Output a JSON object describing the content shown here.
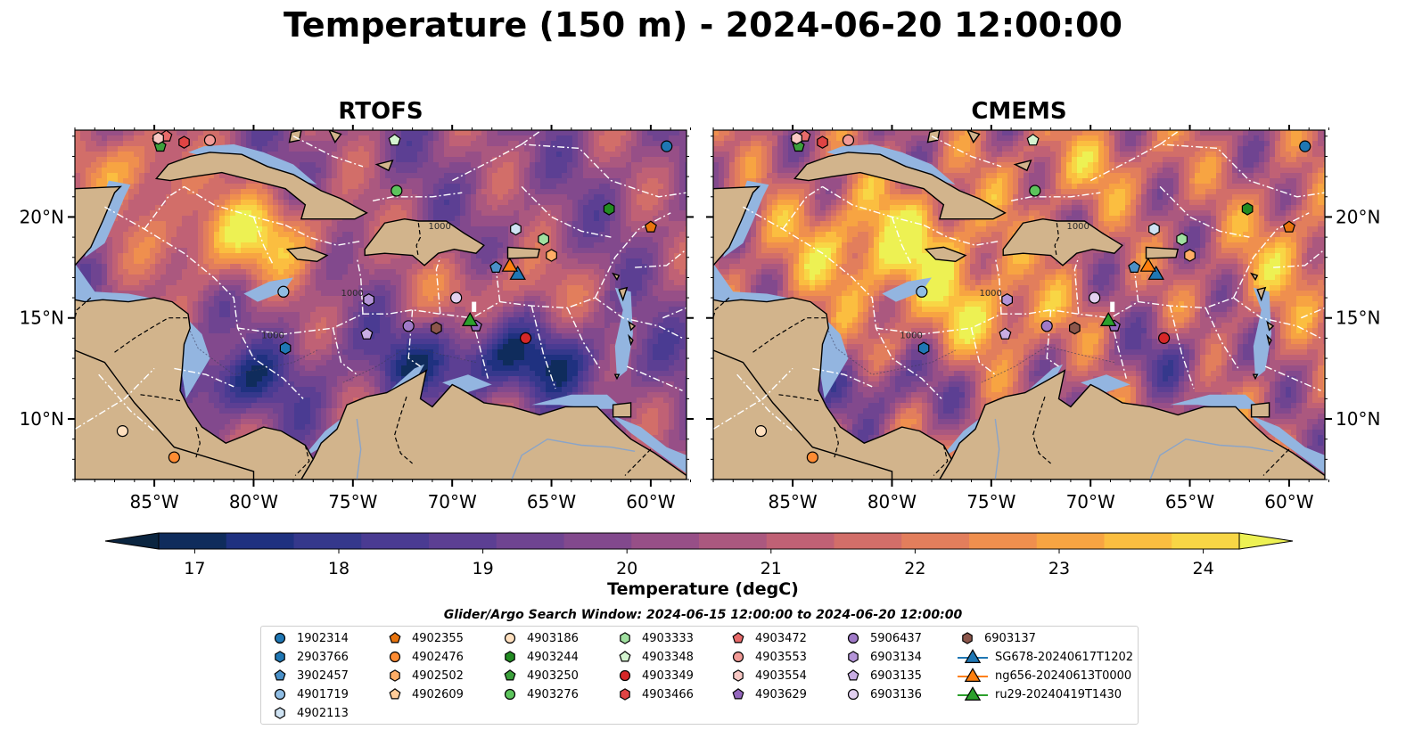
{
  "title": "Temperature (150 m) - 2024-06-20 12:00:00",
  "panels": [
    {
      "title": "RTOFS",
      "scheme": "rtofs"
    },
    {
      "title": "CMEMS",
      "scheme": "cmems"
    }
  ],
  "map": {
    "lon_range": [
      -89,
      -58.2
    ],
    "lat_range": [
      7,
      24.3
    ],
    "lon_ticks": [
      -85,
      -80,
      -75,
      -70,
      -65,
      -60
    ],
    "lon_tick_labels": [
      "85°W",
      "80°W",
      "75°W",
      "70°W",
      "65°W",
      "60°W"
    ],
    "lat_ticks": [
      10,
      15,
      20
    ],
    "lat_tick_labels": [
      "10°N",
      "15°N",
      "20°N"
    ],
    "land_color": "#d2b48c",
    "shelf_color": "#93b5e0"
  },
  "colorbar": {
    "min": 16.5,
    "max": 24.5,
    "ticks": [
      17,
      18,
      19,
      20,
      21,
      22,
      23,
      24
    ],
    "tick_labels": [
      "17",
      "18",
      "19",
      "20",
      "21",
      "22",
      "23",
      "24"
    ],
    "colors": [
      "#0b2540",
      "#0f2c5c",
      "#1f3180",
      "#35388c",
      "#4a3b92",
      "#5c3f93",
      "#6f4491",
      "#82498d",
      "#974f87",
      "#ab587f",
      "#c06175",
      "#d26e69",
      "#e27e5c",
      "#ef8f4e",
      "#f7a442",
      "#fbbe40",
      "#f8d645",
      "#edf153"
    ],
    "label": "Temperature (degC)"
  },
  "search_window": "Glider/Argo Search Window: 2024-06-15 12:00:00 to 2024-06-20 12:00:00",
  "legend": [
    {
      "label": "1902314",
      "color": "#1f77b4",
      "marker": "circle"
    },
    {
      "label": "2903766",
      "color": "#1f77b4",
      "marker": "hexagon"
    },
    {
      "label": "3902457",
      "color": "#4a90c8",
      "marker": "pentagon"
    },
    {
      "label": "4901719",
      "color": "#8fbde4",
      "marker": "circle"
    },
    {
      "label": "4902113",
      "color": "#cfe3f3",
      "marker": "hexagon"
    },
    {
      "label": "4902355",
      "color": "#e8740e",
      "marker": "pentagon"
    },
    {
      "label": "4902476",
      "color": "#ff8c33",
      "marker": "circle"
    },
    {
      "label": "4902502",
      "color": "#ffad66",
      "marker": "hexagon"
    },
    {
      "label": "4902609",
      "color": "#ffcc99",
      "marker": "pentagon"
    },
    {
      "label": "4903186",
      "color": "#ffe0bf",
      "marker": "circle"
    },
    {
      "label": "4903244",
      "color": "#228b22",
      "marker": "hexagon"
    },
    {
      "label": "4903250",
      "color": "#3ca03c",
      "marker": "pentagon"
    },
    {
      "label": "4903276",
      "color": "#5cc45c",
      "marker": "circle"
    },
    {
      "label": "4903333",
      "color": "#a0e0a0",
      "marker": "hexagon"
    },
    {
      "label": "4903348",
      "color": "#d4f4d0",
      "marker": "pentagon"
    },
    {
      "label": "4903349",
      "color": "#d62728",
      "marker": "circle"
    },
    {
      "label": "4903466",
      "color": "#e04444",
      "marker": "hexagon"
    },
    {
      "label": "4903472",
      "color": "#e86a6a",
      "marker": "pentagon"
    },
    {
      "label": "4903553",
      "color": "#f29a96",
      "marker": "circle"
    },
    {
      "label": "4903554",
      "color": "#f8c8c4",
      "marker": "hexagon"
    },
    {
      "label": "4903629",
      "color": "#9467bd",
      "marker": "pentagon"
    },
    {
      "label": "5906437",
      "color": "#a07ac8",
      "marker": "circle"
    },
    {
      "label": "6903134",
      "color": "#b494d8",
      "marker": "hexagon"
    },
    {
      "label": "6903135",
      "color": "#c9aee4",
      "marker": "pentagon"
    },
    {
      "label": "6903136",
      "color": "#e2d0f0",
      "marker": "circle"
    },
    {
      "label": "6903137",
      "color": "#8c564b",
      "marker": "hexagon"
    },
    {
      "label": "SG678-20240617T1202",
      "color": "#1f77b4",
      "marker": "triangle"
    },
    {
      "label": "ng656-20240613T0000",
      "color": "#ff7f0e",
      "marker": "triangle"
    },
    {
      "label": "ru29-20240419T1430",
      "color": "#2ca02c",
      "marker": "triangle"
    }
  ],
  "observations": [
    {
      "id": "1902314",
      "lon": -59.2,
      "lat": 23.5
    },
    {
      "id": "2903766",
      "lon": -78.4,
      "lat": 13.5
    },
    {
      "id": "3902457",
      "lon": -67.8,
      "lat": 17.5
    },
    {
      "id": "4901719",
      "lon": -78.5,
      "lat": 16.3
    },
    {
      "id": "4902113",
      "lon": -66.8,
      "lat": 19.4
    },
    {
      "id": "4902355",
      "lon": -60.0,
      "lat": 19.5
    },
    {
      "id": "4902476",
      "lon": -84.0,
      "lat": 8.1
    },
    {
      "id": "4902502",
      "lon": -65.0,
      "lat": 18.1
    },
    {
      "id": "4902609",
      "lon": -84.8,
      "lat": 23.8
    },
    {
      "id": "4903186",
      "lon": -86.6,
      "lat": 9.4
    },
    {
      "id": "4903244",
      "lon": -62.1,
      "lat": 20.4
    },
    {
      "id": "4903250",
      "lon": -84.7,
      "lat": 23.5
    },
    {
      "id": "4903276",
      "lon": -72.8,
      "lat": 21.3
    },
    {
      "id": "4903333",
      "lon": -65.4,
      "lat": 18.9
    },
    {
      "id": "4903348",
      "lon": -72.9,
      "lat": 23.8
    },
    {
      "id": "4903349",
      "lon": -66.3,
      "lat": 14.0
    },
    {
      "id": "4903466",
      "lon": -83.5,
      "lat": 23.7
    },
    {
      "id": "4903472",
      "lon": -84.4,
      "lat": 24.0
    },
    {
      "id": "4903553",
      "lon": -82.2,
      "lat": 23.8
    },
    {
      "id": "4903554",
      "lon": -84.8,
      "lat": 23.9
    },
    {
      "id": "4903629",
      "lon": -68.8,
      "lat": 14.6
    },
    {
      "id": "5906437",
      "lon": -72.2,
      "lat": 14.6
    },
    {
      "id": "6903134",
      "lon": -74.2,
      "lat": 15.9
    },
    {
      "id": "6903135",
      "lon": -74.3,
      "lat": 14.2
    },
    {
      "id": "6903136",
      "lon": -69.8,
      "lat": 16.0
    },
    {
      "id": "6903137",
      "lon": -70.8,
      "lat": 14.5
    },
    {
      "id": "SG678-20240617T1202",
      "lon": -66.7,
      "lat": 17.2
    },
    {
      "id": "ng656-20240613T0000",
      "lon": -67.1,
      "lat": 17.6
    },
    {
      "id": "ru29-20240419T1430",
      "lon": -69.1,
      "lat": 14.9
    }
  ],
  "contour_labels": [
    {
      "text": "1000",
      "lon": -79.6,
      "lat": 14.0
    },
    {
      "text": "1000",
      "lon": -75.6,
      "lat": 16.1
    },
    {
      "text": "1000",
      "lon": -71.2,
      "lat": 19.4
    }
  ]
}
